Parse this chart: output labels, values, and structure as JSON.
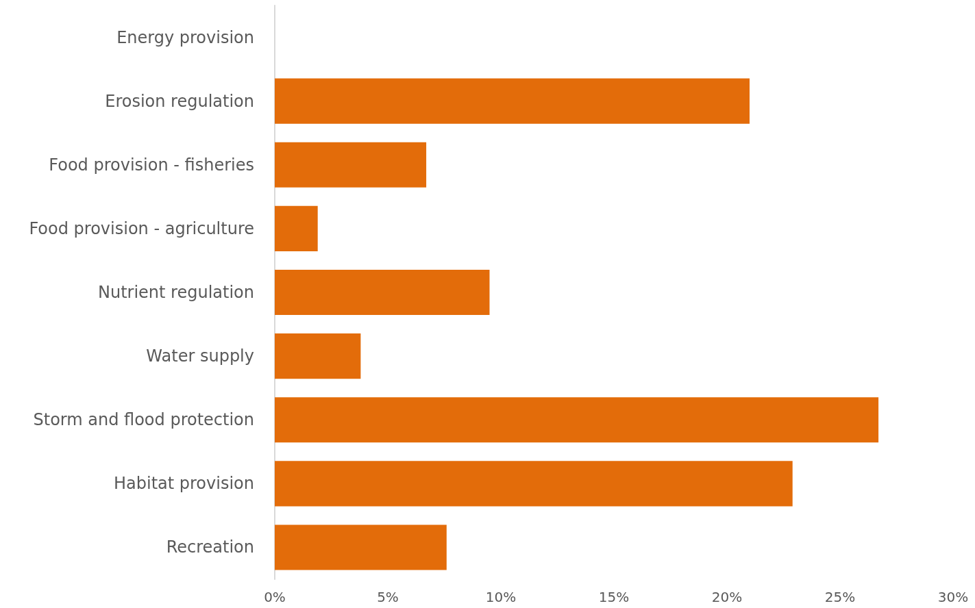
{
  "chart_data": {
    "type": "bar",
    "orientation": "horizontal",
    "categories": [
      "Energy provision",
      "Erosion regulation",
      "Food provision - fisheries",
      "Food provision - agriculture",
      "Nutrient regulation",
      "Water supply",
      "Storm and flood protection",
      "Habitat provision",
      "Recreation"
    ],
    "values": [
      0,
      21.0,
      6.7,
      1.9,
      9.5,
      3.8,
      26.7,
      22.9,
      7.6
    ],
    "color": "#e36c0a",
    "xlim": [
      0,
      30
    ],
    "xticks": [
      {
        "value": 0,
        "label": "0%"
      },
      {
        "value": 5,
        "label": "5%"
      },
      {
        "value": 10,
        "label": "10%"
      },
      {
        "value": 15,
        "label": "15%"
      },
      {
        "value": 20,
        "label": "20%"
      },
      {
        "value": 25,
        "label": "25%"
      },
      {
        "value": 30,
        "label": "30%"
      }
    ],
    "grid": false
  }
}
